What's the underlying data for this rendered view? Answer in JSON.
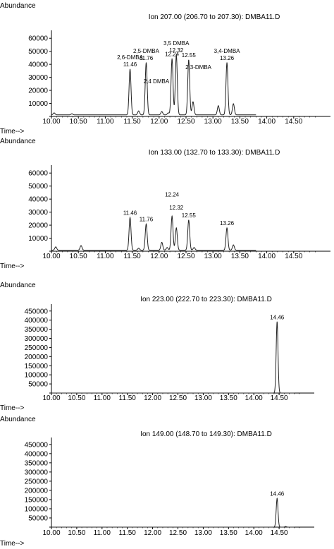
{
  "chart_data": [
    {
      "type": "line",
      "ylabel": "Abundance",
      "xlabel": "Time-->",
      "title": "Ion 207.00 (206.70 to 207.30): DMBA11.D",
      "xlim": [
        10.0,
        15.0
      ],
      "ylim": [
        0,
        65000
      ],
      "xticks": [
        "10.00",
        "10.50",
        "11.00",
        "11.50",
        "12.00",
        "12.50",
        "13.00",
        "13.50",
        "14.00",
        "14.50"
      ],
      "yticks": [
        "10000",
        "20000",
        "30000",
        "40000",
        "50000",
        "60000"
      ],
      "baseline": 1200,
      "series": [
        {
          "peaks": [
            {
              "rt": 10.05,
              "height": 1500
            },
            {
              "rt": 10.38,
              "height": 800
            },
            {
              "rt": 11.46,
              "height": 35000
            },
            {
              "rt": 11.62,
              "height": 3000
            },
            {
              "rt": 11.76,
              "height": 40000
            },
            {
              "rt": 12.05,
              "height": 2500
            },
            {
              "rt": 12.17,
              "height": 1500
            },
            {
              "rt": 12.24,
              "height": 43000
            },
            {
              "rt": 12.32,
              "height": 46000
            },
            {
              "rt": 12.55,
              "height": 42000
            },
            {
              "rt": 12.63,
              "height": 10000
            },
            {
              "rt": 13.1,
              "height": 7000
            },
            {
              "rt": 13.26,
              "height": 40000
            },
            {
              "rt": 13.38,
              "height": 8500
            }
          ]
        }
      ],
      "annotations": [
        {
          "lines": [
            "2,6-DMBA",
            "11.46"
          ],
          "x": 11.46,
          "y": 35000
        },
        {
          "lines": [
            "2,5-DMBA",
            "11.76"
          ],
          "x": 11.76,
          "y": 40000
        },
        {
          "lines": [
            "2,4 DMBA"
          ],
          "x": 11.95,
          "y": 22000
        },
        {
          "lines": [
            "12.24"
          ],
          "x": 12.24,
          "y": 43000
        },
        {
          "lines": [
            "3,5 DMBA",
            "12.32"
          ],
          "x": 12.32,
          "y": 46000
        },
        {
          "lines": [
            "12.55"
          ],
          "x": 12.55,
          "y": 42000
        },
        {
          "lines": [
            "2,3-DMBA"
          ],
          "x": 12.73,
          "y": 33000
        },
        {
          "lines": [
            "3,4-DMBA",
            "13.26"
          ],
          "x": 13.26,
          "y": 40000
        }
      ]
    },
    {
      "type": "line",
      "ylabel": "Abundance",
      "xlabel": "Time-->",
      "title": "Ion 133.00 (132.70 to 133.30): DMBA11.D",
      "xlim": [
        10.0,
        15.0
      ],
      "ylim": [
        0,
        65000
      ],
      "xticks": [
        "10.00",
        "10.50",
        "11.00",
        "11.50",
        "12.00",
        "12.50",
        "13.00",
        "13.50",
        "14.00",
        "14.50"
      ],
      "yticks": [
        "10000",
        "20000",
        "30000",
        "40000",
        "50000",
        "60000"
      ],
      "baseline": 800,
      "series": [
        {
          "peaks": [
            {
              "rt": 10.08,
              "height": 2500
            },
            {
              "rt": 10.55,
              "height": 3500
            },
            {
              "rt": 11.46,
              "height": 25000
            },
            {
              "rt": 11.62,
              "height": 1500
            },
            {
              "rt": 11.76,
              "height": 20000
            },
            {
              "rt": 12.05,
              "height": 6000
            },
            {
              "rt": 12.15,
              "height": 2000
            },
            {
              "rt": 12.24,
              "height": 26000
            },
            {
              "rt": 12.32,
              "height": 17000
            },
            {
              "rt": 12.55,
              "height": 23000
            },
            {
              "rt": 12.65,
              "height": 2000
            },
            {
              "rt": 13.26,
              "height": 17000
            },
            {
              "rt": 13.38,
              "height": 4000
            }
          ]
        }
      ],
      "annotations": [
        {
          "lines": [
            "11.46"
          ],
          "x": 11.46,
          "y": 25000
        },
        {
          "lines": [
            "11.76"
          ],
          "x": 11.76,
          "y": 20000
        },
        {
          "lines": [
            "12.24"
          ],
          "x": 12.24,
          "y": 39000
        },
        {
          "lines": [
            "12.32"
          ],
          "x": 12.32,
          "y": 29000
        },
        {
          "lines": [
            "12.55"
          ],
          "x": 12.55,
          "y": 23000
        },
        {
          "lines": [
            "13.26"
          ],
          "x": 13.26,
          "y": 17000
        }
      ]
    },
    {
      "type": "line",
      "ylabel": "Abundance",
      "xlabel": "Time-->",
      "title": "Ion 223.00 (222.70 to 223.30): DMBA11.D",
      "xlim": [
        10.0,
        15.0
      ],
      "ylim": [
        0,
        480000
      ],
      "xticks": [
        "10.00",
        "10.50",
        "11.00",
        "11.50",
        "12.00",
        "12.50",
        "13.00",
        "13.50",
        "14.00",
        "14.50"
      ],
      "yticks": [
        "50000",
        "100000",
        "150000",
        "200000",
        "250000",
        "300000",
        "350000",
        "400000",
        "450000"
      ],
      "baseline": 0,
      "series": [
        {
          "peaks": [
            {
              "rt": 14.46,
              "height": 390000
            }
          ]
        }
      ],
      "annotations": [
        {
          "lines": [
            "14.46"
          ],
          "x": 14.46,
          "y": 390000
        }
      ]
    },
    {
      "type": "line",
      "ylabel": "Abundance",
      "xlabel": "Time-->",
      "title": "Ion 149.00 (148.70 to 149.30): DMBA11.D",
      "xlim": [
        10.0,
        15.0
      ],
      "ylim": [
        0,
        480000
      ],
      "xticks": [
        "10.00",
        "10.50",
        "11.00",
        "11.50",
        "12.00",
        "12.50",
        "13.00",
        "13.50",
        "14.00",
        "14.50"
      ],
      "yticks": [
        "50000",
        "100000",
        "150000",
        "200000",
        "250000",
        "300000",
        "350000",
        "400000",
        "450000"
      ],
      "baseline": 0,
      "series": [
        {
          "peaks": [
            {
              "rt": 14.46,
              "height": 155000
            },
            {
              "rt": 14.63,
              "height": 3000
            }
          ]
        }
      ],
      "annotations": [
        {
          "lines": [
            "14.46"
          ],
          "x": 14.46,
          "y": 155000
        }
      ]
    }
  ]
}
